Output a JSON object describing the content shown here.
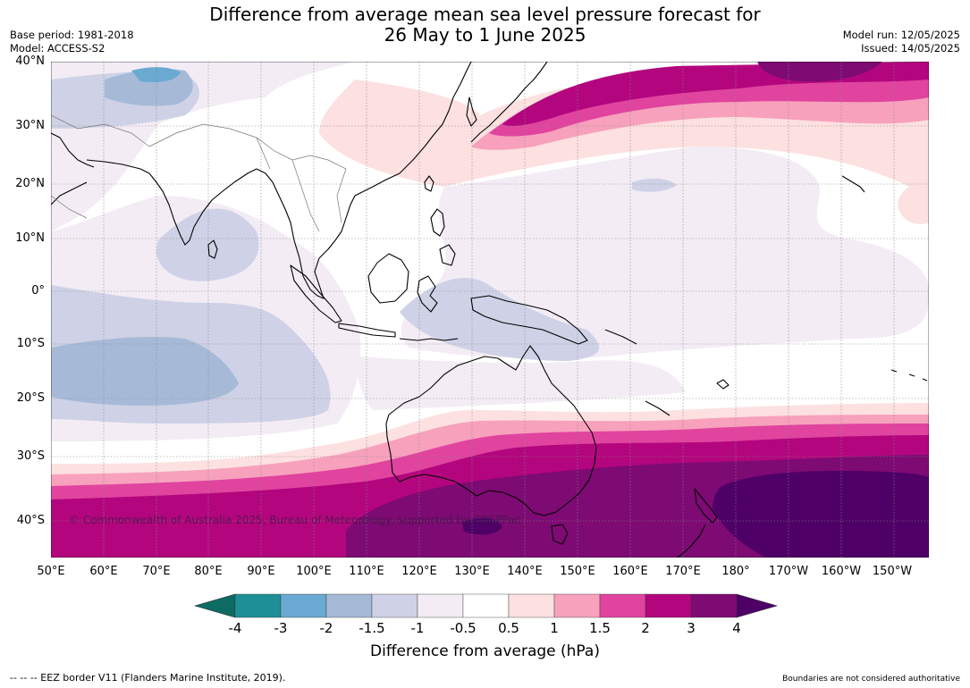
{
  "title_line1": "Difference from average mean sea level pressure forecast for",
  "title_line2": "26 May to 1 June 2025",
  "base_period": "Base period: 1981-2018",
  "model": "Model: ACCESS-S2",
  "model_run": "Model run: 12/05/2025",
  "issued": "Issued: 14/05/2025",
  "latitude_labels": [
    "40°N",
    "30°N",
    "20°N",
    "10°N",
    "0°",
    "10°S",
    "20°S",
    "30°S",
    "40°S"
  ],
  "longitude_labels": [
    "50°E",
    "60°E",
    "70°E",
    "80°E",
    "90°E",
    "100°E",
    "110°E",
    "120°E",
    "130°E",
    "140°E",
    "150°E",
    "160°E",
    "170°E",
    "180°",
    "170°W",
    "160°W",
    "150°W"
  ],
  "colorbar": {
    "ticks": [
      "-4",
      "-3",
      "-2",
      "-1.5",
      "-1",
      "-0.5",
      "0.5",
      "1",
      "1.5",
      "2",
      "3",
      "4"
    ],
    "colors": [
      "#0e6b63",
      "#1f8f96",
      "#6aa9d1",
      "#a6bad8",
      "#cfd2e6",
      "#f3ecf5",
      "#ffffff",
      "#fde0e0",
      "#f7a1bd",
      "#e0449e",
      "#b3067e",
      "#7e0a73",
      "#4e0067"
    ],
    "title": "Difference from average (hPa)"
  },
  "copyright": "© Commonwealth of Australia 2025, Bureau of Meteorology, supported by COSPPac",
  "eez_note": "-- -- -- EEZ border V11 (Flanders Marine Institute, 2019).",
  "boundary_note": "Boundaries are not considered authoritative"
}
